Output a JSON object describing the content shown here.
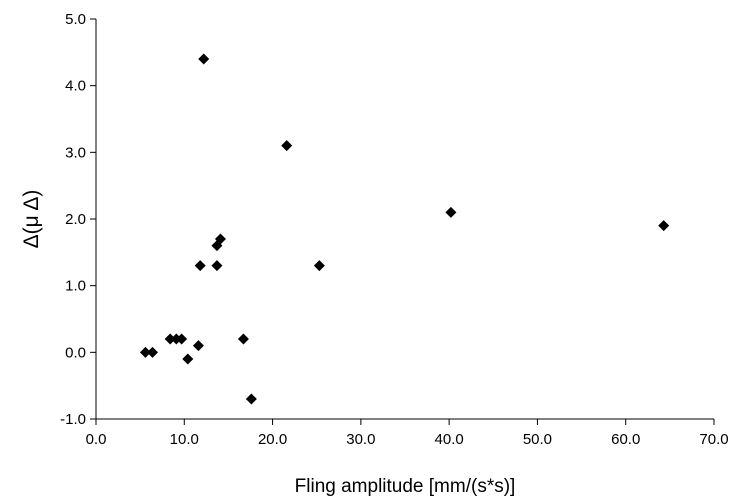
{
  "chart_data": {
    "type": "scatter",
    "xlabel": "Fling amplitude [mm/(s*s)]",
    "ylabel": "Δ(μ Δ)",
    "xlim": [
      0,
      70
    ],
    "ylim": [
      -1,
      5
    ],
    "grid": false,
    "marker": "diamond",
    "marker_color": "#000000",
    "x_ticks": [
      "0.0",
      "10.0",
      "20.0",
      "30.0",
      "40.0",
      "50.0",
      "60.0",
      "70.0"
    ],
    "y_ticks": [
      "-1.0",
      "0.0",
      "1.0",
      "2.0",
      "3.0",
      "4.0",
      "5.0"
    ],
    "points": [
      {
        "x": 5.6,
        "y": 0.0
      },
      {
        "x": 6.4,
        "y": 0.0
      },
      {
        "x": 8.4,
        "y": 0.2
      },
      {
        "x": 9.1,
        "y": 0.2
      },
      {
        "x": 9.7,
        "y": 0.2
      },
      {
        "x": 10.4,
        "y": -0.1
      },
      {
        "x": 11.6,
        "y": 0.1
      },
      {
        "x": 11.8,
        "y": 1.3
      },
      {
        "x": 12.2,
        "y": 4.4
      },
      {
        "x": 13.7,
        "y": 1.3
      },
      {
        "x": 13.7,
        "y": 1.6
      },
      {
        "x": 14.1,
        "y": 1.7
      },
      {
        "x": 16.7,
        "y": 0.2
      },
      {
        "x": 17.6,
        "y": -0.7
      },
      {
        "x": 21.6,
        "y": 3.1
      },
      {
        "x": 25.3,
        "y": 1.3
      },
      {
        "x": 40.2,
        "y": 2.1
      },
      {
        "x": 64.3,
        "y": 1.9
      }
    ]
  }
}
